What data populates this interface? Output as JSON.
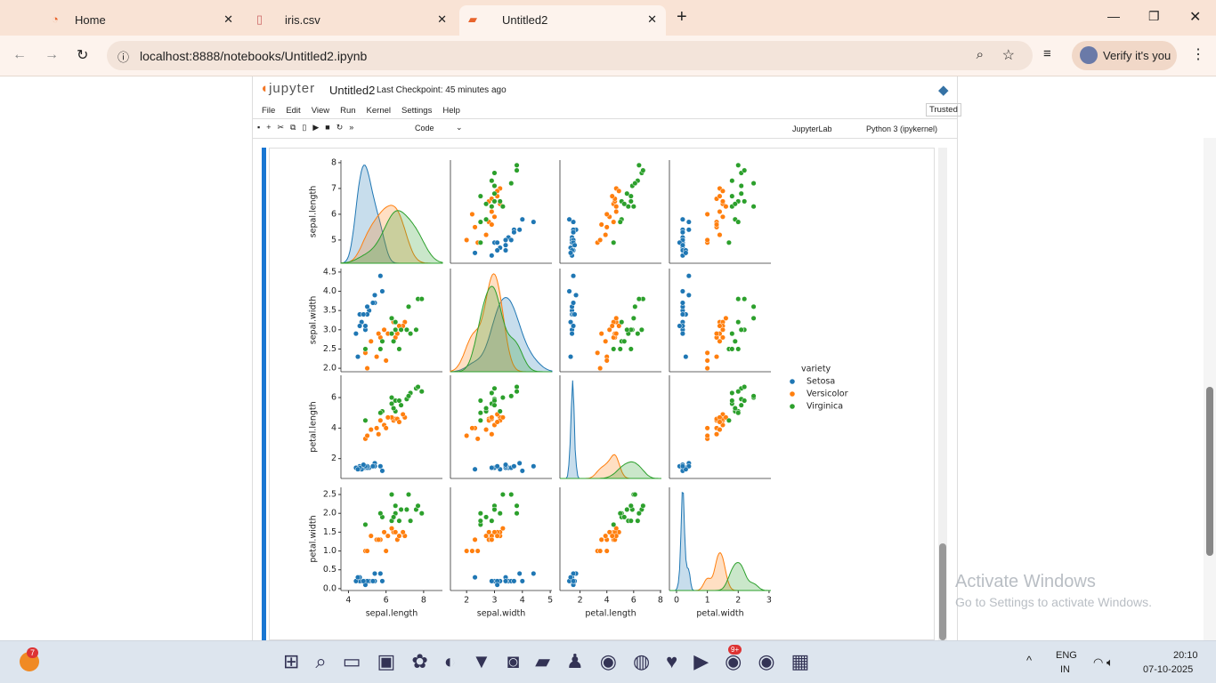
{
  "browser": {
    "tabs": [
      "Home",
      "iris.csv",
      "Untitled2"
    ],
    "url": "localhost:8888/notebooks/Untitled2.ipynb",
    "profile": "Verify it's you"
  },
  "notebook": {
    "logo": "jupyter",
    "name": "Untitled2",
    "checkpoint": "Last Checkpoint: 45 minutes ago",
    "menu": [
      "File",
      "Edit",
      "View",
      "Run",
      "Kernel",
      "Settings",
      "Help"
    ],
    "trusted": "Trusted",
    "cell_type": "Code",
    "jupyterlab": "JupyterLab",
    "kernel": "Python 3 (ipykernel)"
  },
  "watermark": {
    "title": "Activate Windows",
    "text": "Go to Settings to activate Windows."
  },
  "taskbar": {
    "weather_badge": "7",
    "discord_badge": "9+",
    "lang": "ENG",
    "region": "IN",
    "time": "20:10",
    "date": "07-10-2025"
  },
  "chart_data": {
    "type": "pairplot",
    "variables": [
      "sepal.length",
      "sepal.width",
      "petal.length",
      "petal.width"
    ],
    "axes": [
      {
        "xlim": [
          3.6,
          9.0
        ],
        "ylim": [
          4.1,
          8.1
        ],
        "xticks": [
          4,
          6,
          8
        ],
        "yticks": [
          5,
          6,
          7,
          8
        ]
      },
      {
        "xlim": [
          1.42,
          5.06
        ],
        "ylim": [
          1.91,
          4.59
        ],
        "xticks": [
          2,
          3,
          4,
          5
        ],
        "yticks": [
          {
            "value": 2,
            "label": "2.0"
          },
          2.5,
          {
            "value": 3,
            "label": "3.0"
          },
          3.5,
          {
            "value": 4,
            "label": "4.0"
          },
          4.5
        ]
      },
      {
        "xlim": [
          0.5,
          8.07
        ],
        "ylim": [
          0.7,
          7.46
        ],
        "xticks": [
          2,
          4,
          6,
          8
        ],
        "yticks": [
          2,
          4,
          6
        ]
      },
      {
        "xlim": [
          -0.23,
          3.06
        ],
        "ylim": [
          -0.05,
          2.69
        ],
        "xticks": [
          0,
          1,
          2,
          3
        ],
        "yticks": [
          {
            "value": 0,
            "label": "0.0"
          },
          0.5,
          {
            "value": 1,
            "label": "1.0"
          },
          1.5,
          {
            "value": 2,
            "label": "2.0"
          },
          2.5
        ]
      }
    ],
    "legend_title": "variety",
    "legend": "right",
    "series": [
      {
        "name": "Setosa",
        "color": "#1f77b4",
        "values": [
          [
            5.1,
            3.5,
            1.4,
            0.2
          ],
          [
            4.9,
            3.0,
            1.4,
            0.2
          ],
          [
            4.7,
            3.2,
            1.3,
            0.2
          ],
          [
            4.6,
            3.1,
            1.5,
            0.2
          ],
          [
            5.0,
            3.6,
            1.4,
            0.2
          ],
          [
            5.4,
            3.9,
            1.7,
            0.4
          ],
          [
            4.6,
            3.4,
            1.4,
            0.3
          ],
          [
            5.0,
            3.4,
            1.5,
            0.2
          ],
          [
            4.4,
            2.9,
            1.4,
            0.2
          ],
          [
            4.9,
            3.1,
            1.5,
            0.1
          ],
          [
            5.4,
            3.7,
            1.5,
            0.2
          ],
          [
            4.8,
            3.4,
            1.6,
            0.2
          ],
          [
            5.7,
            4.4,
            1.5,
            0.4
          ],
          [
            5.8,
            4.0,
            1.2,
            0.2
          ],
          [
            4.5,
            2.3,
            1.3,
            0.3
          ],
          [
            5.3,
            3.7,
            1.5,
            0.2
          ]
        ]
      },
      {
        "name": "Versicolor",
        "color": "#ff7f0e",
        "values": [
          [
            7.0,
            3.2,
            4.7,
            1.4
          ],
          [
            6.4,
            3.2,
            4.5,
            1.5
          ],
          [
            6.9,
            3.1,
            4.9,
            1.5
          ],
          [
            5.5,
            2.3,
            4.0,
            1.3
          ],
          [
            6.5,
            2.8,
            4.6,
            1.5
          ],
          [
            5.7,
            2.8,
            4.5,
            1.3
          ],
          [
            6.3,
            3.3,
            4.7,
            1.6
          ],
          [
            4.9,
            2.4,
            3.3,
            1.0
          ],
          [
            6.6,
            2.9,
            4.6,
            1.3
          ],
          [
            5.2,
            2.7,
            3.9,
            1.4
          ],
          [
            5.0,
            2.0,
            3.5,
            1.0
          ],
          [
            5.9,
            3.0,
            4.2,
            1.5
          ],
          [
            6.0,
            2.2,
            4.0,
            1.0
          ],
          [
            6.1,
            2.9,
            4.7,
            1.4
          ],
          [
            5.6,
            2.9,
            3.6,
            1.3
          ],
          [
            6.7,
            3.1,
            4.4,
            1.4
          ]
        ]
      },
      {
        "name": "Virginica",
        "color": "#2ca02c",
        "values": [
          [
            6.3,
            3.3,
            6.0,
            2.5
          ],
          [
            5.8,
            2.7,
            5.1,
            1.9
          ],
          [
            7.1,
            3.0,
            5.9,
            2.1
          ],
          [
            6.3,
            2.9,
            5.6,
            1.8
          ],
          [
            6.5,
            3.0,
            5.8,
            2.2
          ],
          [
            7.6,
            3.0,
            6.6,
            2.1
          ],
          [
            4.9,
            2.5,
            4.5,
            1.7
          ],
          [
            7.3,
            2.9,
            6.3,
            1.8
          ],
          [
            6.7,
            2.5,
            5.8,
            1.8
          ],
          [
            7.2,
            3.6,
            6.1,
            2.5
          ],
          [
            6.5,
            3.2,
            5.1,
            2.0
          ],
          [
            6.4,
            2.7,
            5.3,
            1.9
          ],
          [
            6.8,
            3.0,
            5.5,
            2.1
          ],
          [
            5.7,
            2.5,
            5.0,
            2.0
          ],
          [
            7.7,
            3.8,
            6.7,
            2.2
          ],
          [
            7.9,
            3.8,
            6.4,
            2.0
          ]
        ]
      }
    ]
  }
}
